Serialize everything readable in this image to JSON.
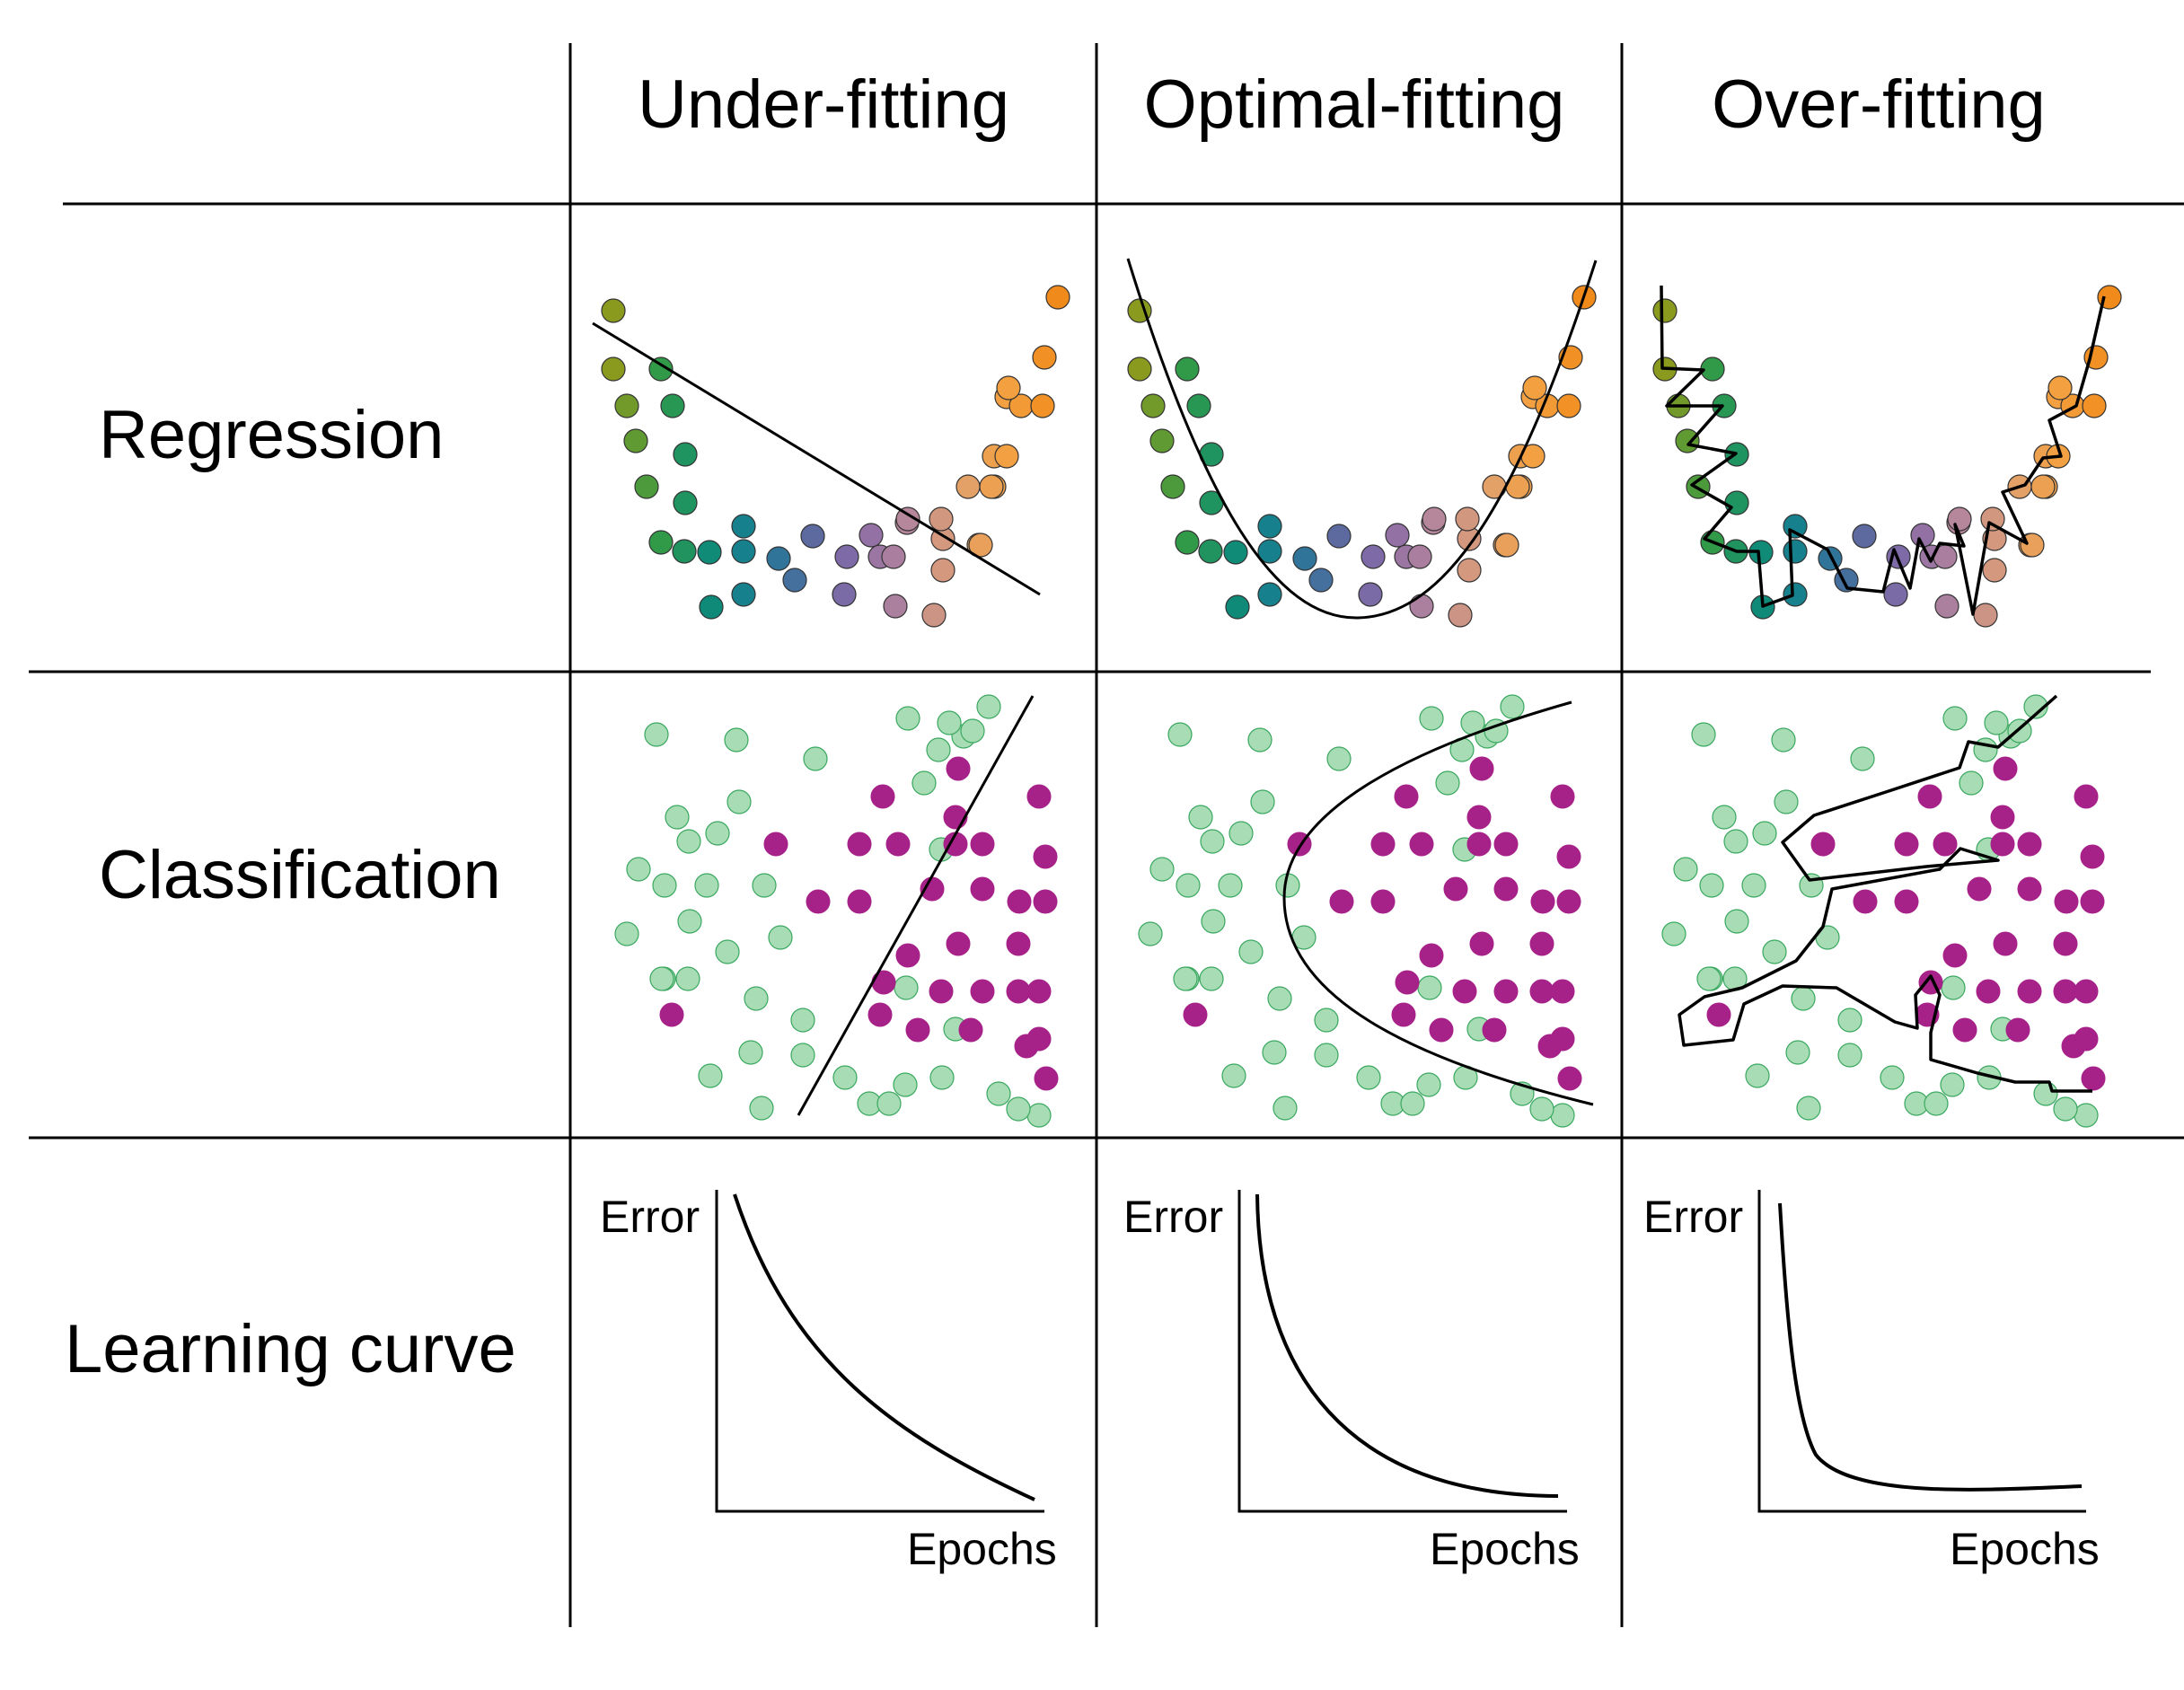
{
  "columns": [
    "Under-fitting",
    "Optimal-fitting",
    "Over-fitting"
  ],
  "rows": [
    "Regression",
    "Classification",
    "Learning curve"
  ],
  "learning_curve": {
    "y_label": "Error",
    "x_label": "Epochs"
  },
  "colors": {
    "grid_line": "#000000",
    "regression_gradient": [
      "#8a9a1f",
      "#2e9a4a",
      "#0e8a7a",
      "#1a7a96",
      "#5a6aa0",
      "#8a6aa8",
      "#b8889a",
      "#e0a070",
      "#f3a040",
      "#f08a1a"
    ],
    "class_a_fill": "#a8dcb4",
    "class_a_stroke": "#3aa860",
    "class_b_fill": "#a62188"
  },
  "icons": {
    "fit_line": "fit-curve",
    "decision_boundary": "boundary-curve"
  }
}
